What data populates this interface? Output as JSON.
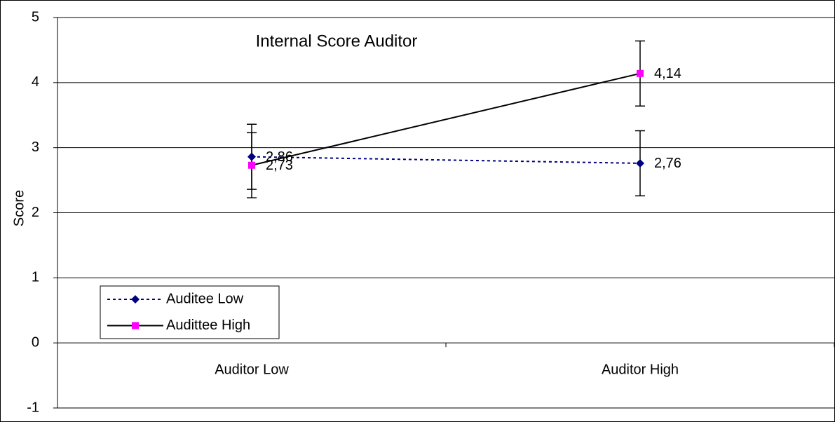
{
  "chart_data": {
    "type": "line",
    "title": "Internal Score Auditor",
    "ylabel": "Score",
    "categories": [
      "Auditor Low",
      "Auditor High"
    ],
    "series": [
      {
        "name": "Auditee Low",
        "color": "#000080",
        "line_color": "#000080",
        "line_style": "dotted",
        "marker": "diamond",
        "values": [
          2.86,
          2.76
        ],
        "value_labels": [
          "2,86",
          "2,76"
        ],
        "errors": [
          0.5,
          0.5
        ]
      },
      {
        "name": "Audittee High",
        "color": "#ff00ff",
        "line_color": "#000000",
        "line_style": "solid",
        "marker": "square",
        "values": [
          2.73,
          4.14
        ],
        "value_labels": [
          "2,73",
          "4,14"
        ],
        "errors": [
          0.5,
          0.5
        ]
      }
    ],
    "ylim": [
      -1,
      5
    ],
    "yticks": [
      -1,
      0,
      1,
      2,
      3,
      4,
      5
    ],
    "grid": true,
    "legend": "lower left"
  }
}
